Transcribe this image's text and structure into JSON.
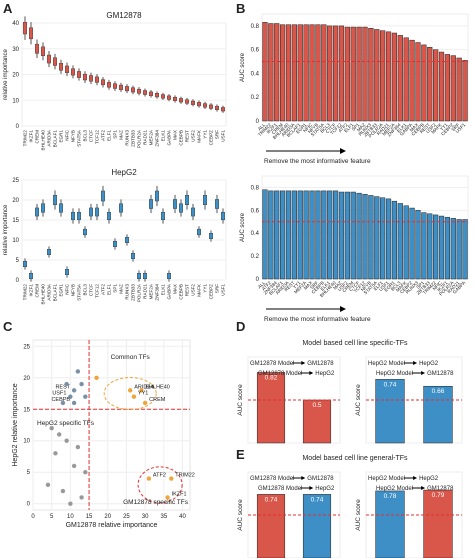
{
  "figure": {
    "panel_letters": [
      "A",
      "B",
      "C",
      "D",
      "E"
    ],
    "colors": {
      "red": "#d9564a",
      "blue": "#3d8fc6",
      "orange": "#f0a43a",
      "grey": "#999999",
      "dashed": "#e03030"
    }
  },
  "chart_data": [
    {
      "panel": "A-top",
      "type": "box",
      "title": "GM12878",
      "ylabel": "relative importance",
      "ylim": [
        0,
        40
      ],
      "yticks": [
        0,
        10,
        20,
        30,
        40
      ],
      "categories": [
        "TRIM22",
        "IKZF1",
        "CREM",
        "BHLHE40",
        "ARID3A",
        "BCLAF1",
        "EGR1",
        "NFIC",
        "NFYB",
        "STAT5A",
        "BCL3",
        "CTCF",
        "TCF12",
        "ATF2",
        "ELF1",
        "SP1",
        "MAZ",
        "RUNX3",
        "ZBTB33",
        "POLR2A",
        "RAD21",
        "MEF2A",
        "ZNF384",
        "ELK1",
        "GABPA",
        "MAX",
        "CEBPB",
        "REST",
        "USF2",
        "MAFK",
        "YY1",
        "CEBPZ",
        "SRF",
        "USF1"
      ],
      "values": [
        38,
        36,
        30,
        29,
        26,
        25,
        23,
        22,
        21,
        20,
        19,
        18.5,
        18,
        17,
        16,
        15.5,
        15,
        14.5,
        14,
        13.5,
        13,
        12.5,
        12,
        11.5,
        11,
        10.5,
        10,
        9.5,
        9,
        8.5,
        8,
        7.5,
        7,
        6.5
      ]
    },
    {
      "panel": "A-bottom",
      "type": "box",
      "title": "HepG2",
      "ylabel": "relative importance",
      "ylim": [
        0,
        25
      ],
      "yticks": [
        0,
        5,
        10,
        15,
        20,
        25
      ],
      "categories": [
        "TRIM22",
        "IKZF1",
        "CREM",
        "BHLHE40",
        "ARID3A",
        "BCLAF1",
        "EGR1",
        "NFIC",
        "NFYB",
        "STAT5A",
        "BCL3",
        "CTCF",
        "TCF12",
        "ATF2",
        "ELF1",
        "SP1",
        "MAZ",
        "RUNX3",
        "ZBTB33",
        "POLR2A",
        "RAD21",
        "MEF2A",
        "ZNF384",
        "ELK1",
        "GABPA",
        "MAX",
        "CEBPB",
        "REST",
        "USF2",
        "MAFK",
        "YY1",
        "CEBPZ",
        "SRF",
        "USF1"
      ],
      "values": [
        4,
        1,
        17,
        18,
        7,
        20,
        18,
        2,
        16,
        16,
        12,
        17,
        17,
        21,
        16,
        9,
        18,
        10,
        6,
        1,
        1,
        19,
        21,
        16,
        1,
        19,
        18,
        20,
        17,
        12,
        20,
        11,
        19,
        16
      ]
    },
    {
      "panel": "B-top",
      "type": "bar",
      "ylabel": "AUC score",
      "xlabel": "Remove the most informative feature",
      "ylim": [
        0,
        0.9
      ],
      "yticks": [
        0,
        0.2,
        0.4,
        0.6,
        0.8
      ],
      "reference_line": 0.5,
      "categories": [
        "ALL",
        "TRIM22",
        "IKZF1",
        "CREM",
        "BHLHE40",
        "ARID3A",
        "BCLAF1",
        "EGR1",
        "NFIC",
        "NFYB",
        "STAT5A",
        "BCL3",
        "CTCF",
        "TCF12",
        "ATF2",
        "ELF1",
        "SP1",
        "MAZ",
        "RUNX3",
        "ZBTB33",
        "POLR2A",
        "RAD21",
        "MEF2A",
        "ZNF384",
        "ELK1",
        "GABPA",
        "MAX",
        "CEBPB",
        "REST",
        "USF2",
        "MAFK",
        "YY1",
        "CEBPZ",
        "SRF",
        "USF1"
      ],
      "values": [
        0.83,
        0.82,
        0.82,
        0.81,
        0.81,
        0.81,
        0.81,
        0.81,
        0.81,
        0.81,
        0.81,
        0.8,
        0.8,
        0.8,
        0.79,
        0.79,
        0.79,
        0.79,
        0.78,
        0.77,
        0.76,
        0.75,
        0.74,
        0.72,
        0.7,
        0.68,
        0.66,
        0.64,
        0.62,
        0.6,
        0.58,
        0.56,
        0.55,
        0.53,
        0.51
      ]
    },
    {
      "panel": "B-bottom",
      "type": "bar",
      "ylabel": "AUC score",
      "xlabel": "Remove the most informative feature",
      "ylim": [
        0,
        0.9
      ],
      "yticks": [
        0,
        0.2,
        0.4,
        0.6,
        0.8
      ],
      "reference_line": 0.5,
      "categories": [
        "ALL",
        "ATF2",
        "ZNF384",
        "BCLAF1",
        "ARID3A",
        "REST",
        "YY1",
        "MEF2A",
        "MAX",
        "SRF",
        "CEBPB",
        "ELK1",
        "BHLHE40",
        "MAZ",
        "USF2",
        "CREM",
        "CTCF",
        "TCF12",
        "NFYB",
        "STAT5A",
        "ELF1",
        "USF1",
        "EGR1",
        "BCL3",
        "MAFK",
        "CEBPZ",
        "RUNX3",
        "SP1",
        "ZBTB33",
        "TRIM22",
        "NFIC",
        "IKZF1",
        "POLR2A",
        "RAD21",
        "GABPA"
      ],
      "values": [
        0.78,
        0.77,
        0.77,
        0.77,
        0.77,
        0.77,
        0.77,
        0.77,
        0.77,
        0.77,
        0.77,
        0.77,
        0.77,
        0.76,
        0.76,
        0.76,
        0.75,
        0.74,
        0.73,
        0.72,
        0.71,
        0.7,
        0.68,
        0.66,
        0.64,
        0.62,
        0.6,
        0.58,
        0.57,
        0.56,
        0.55,
        0.54,
        0.53,
        0.52,
        0.52
      ]
    },
    {
      "panel": "C",
      "type": "scatter",
      "xlabel": "GM12878 relative importance",
      "ylabel": "HepG2 relative importance",
      "xlim": [
        0,
        42
      ],
      "ylim": [
        -1,
        26
      ],
      "xticks": [
        0,
        5,
        10,
        15,
        20,
        25,
        30,
        35,
        40
      ],
      "yticks": [
        0,
        5,
        10,
        15,
        20,
        25
      ],
      "threshold_x": 15,
      "threshold_y": 15,
      "points": [
        {
          "x": 26,
          "y": 18,
          "label": "ARID3A",
          "group": "common"
        },
        {
          "x": 29,
          "y": 18,
          "label": "BHLHE40",
          "group": "common"
        },
        {
          "x": 30,
          "y": 16,
          "label": "CREM",
          "group": "common"
        },
        {
          "x": 27,
          "y": 17,
          "label": "YY1",
          "group": "common"
        },
        {
          "x": 17,
          "y": 20,
          "group": "common"
        },
        {
          "x": 11,
          "y": 18,
          "label": "REST",
          "group": "hepg2"
        },
        {
          "x": 10,
          "y": 17,
          "label": "USF1",
          "group": "hepg2"
        },
        {
          "x": 11,
          "y": 16,
          "label": "CEBPB",
          "group": "hepg2"
        },
        {
          "x": 13,
          "y": 19,
          "group": "hepg2"
        },
        {
          "x": 14,
          "y": 17,
          "group": "hepg2"
        },
        {
          "x": 9,
          "y": 19,
          "group": "hepg2"
        },
        {
          "x": 12,
          "y": 21,
          "group": "hepg2"
        },
        {
          "x": 8,
          "y": 16,
          "group": "hepg2"
        },
        {
          "x": 31,
          "y": 4,
          "label": "ATF2",
          "group": "gm"
        },
        {
          "x": 37,
          "y": 4,
          "label": "TRIM22",
          "group": "gm"
        },
        {
          "x": 36,
          "y": 1,
          "label": "IKZF1",
          "group": "gm"
        },
        {
          "x": 5,
          "y": 12,
          "group": "other"
        },
        {
          "x": 7,
          "y": 11,
          "group": "other"
        },
        {
          "x": 9,
          "y": 10,
          "group": "other"
        },
        {
          "x": 12,
          "y": 9,
          "group": "other"
        },
        {
          "x": 6,
          "y": 8,
          "group": "other"
        },
        {
          "x": 11,
          "y": 6,
          "group": "other"
        },
        {
          "x": 14,
          "y": 5,
          "group": "other"
        },
        {
          "x": 4,
          "y": 3,
          "group": "other"
        },
        {
          "x": 8,
          "y": 2,
          "group": "other"
        },
        {
          "x": 13,
          "y": 1,
          "group": "other"
        },
        {
          "x": 10,
          "y": 0,
          "group": "other"
        }
      ],
      "region_labels": [
        "Common TFs",
        "HepG2 specific TFs",
        "GM12878 specific TFs"
      ]
    },
    {
      "panel": "D",
      "type": "bar",
      "title": "Model based cell line specific-TFs",
      "ylabel": "AUC score",
      "ylim": [
        0,
        1
      ],
      "reference_line": 0.5,
      "subplots": [
        {
          "labels": [
            "GM12878 Model",
            "GM12878",
            "GM12878 Model",
            "HepG2"
          ],
          "bars": [
            {
              "value": 0.82,
              "color": "red"
            },
            {
              "value": 0.5,
              "color": "red"
            }
          ]
        },
        {
          "labels": [
            "HepG2 Model",
            "HepG2",
            "HepG2 Model",
            "GM12878"
          ],
          "bars": [
            {
              "value": 0.74,
              "color": "blue"
            },
            {
              "value": 0.66,
              "color": "blue"
            }
          ]
        }
      ]
    },
    {
      "panel": "E",
      "type": "bar",
      "title": "Model based cell line general-TFs",
      "ylabel": "AUC score",
      "ylim": [
        0,
        1
      ],
      "reference_line": 0.5,
      "subplots": [
        {
          "labels": [
            "GM12878 Model",
            "GM12878",
            "GM12878 Model",
            "HepG2"
          ],
          "bars": [
            {
              "value": 0.74,
              "color": "red"
            },
            {
              "value": 0.74,
              "color": "blue"
            }
          ]
        },
        {
          "labels": [
            "HepG2 Model",
            "HepG2",
            "HepG2 Model",
            "GM12878"
          ],
          "bars": [
            {
              "value": 0.78,
              "color": "blue"
            },
            {
              "value": 0.79,
              "color": "red"
            }
          ]
        }
      ]
    }
  ]
}
